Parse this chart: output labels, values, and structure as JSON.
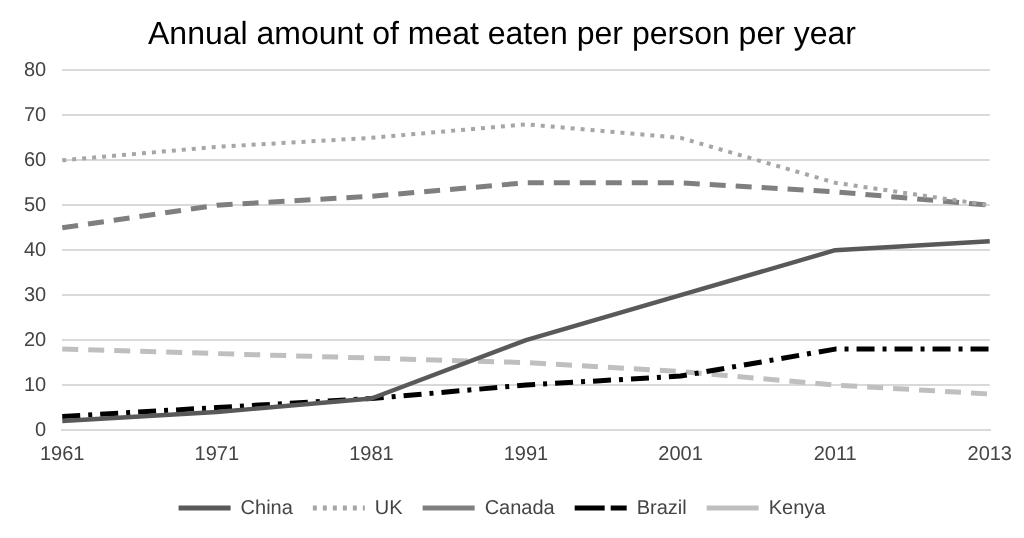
{
  "chart_data": {
    "type": "line",
    "title": "Annual amount of meat eaten per person per year",
    "categories": [
      "1961",
      "1971",
      "1981",
      "1991",
      "2001",
      "2011",
      "2013"
    ],
    "series": [
      {
        "name": "China",
        "color": "#595959",
        "line_style": "solid",
        "values": [
          2,
          4,
          7,
          20,
          30,
          40,
          42
        ]
      },
      {
        "name": "UK",
        "color": "#a6a6a6",
        "line_style": "dotted",
        "values": [
          60,
          63,
          65,
          68,
          65,
          55,
          50
        ]
      },
      {
        "name": "Canada",
        "color": "#7f7f7f",
        "line_style": "dashed",
        "values": [
          45,
          50,
          52,
          55,
          55,
          53,
          50
        ]
      },
      {
        "name": "Brazil",
        "color": "#000000",
        "line_style": "dashdot",
        "values": [
          3,
          5,
          7,
          10,
          12,
          18,
          18
        ]
      },
      {
        "name": "Kenya",
        "color": "#bfbfbf",
        "line_style": "dashed",
        "values": [
          18,
          17,
          16,
          15,
          13,
          10,
          8
        ]
      }
    ],
    "ylim": [
      0,
      80
    ],
    "yticks": [
      0,
      10,
      20,
      30,
      40,
      50,
      60,
      70,
      80
    ],
    "grid": "y",
    "legend": "bottom",
    "marker": "none"
  }
}
